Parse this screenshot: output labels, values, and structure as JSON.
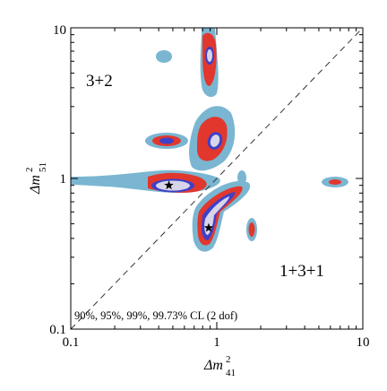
{
  "chart_data": {
    "type": "contour",
    "x_axis": {
      "label_main": "Δm",
      "label_sup": "2",
      "label_sub": "41",
      "scale": "log",
      "range": [
        0.1,
        10
      ],
      "tick_labels": [
        "0.1",
        "1",
        "10"
      ],
      "tick_values": [
        0.1,
        1,
        10
      ]
    },
    "y_axis": {
      "label_main": "Δm",
      "label_sup": "2",
      "label_sub": "51",
      "scale": "log",
      "range": [
        0.1,
        10
      ],
      "tick_labels": [
        "0.1",
        "1",
        "10"
      ],
      "tick_values": [
        0.1,
        1,
        10
      ]
    },
    "region_labels": [
      "3+2",
      "1+3+1"
    ],
    "cl_note": "90%, 95%, 99%, 99.73% CL (2 dof)",
    "confidence_levels": [
      "90%",
      "95%",
      "99%",
      "99.73%"
    ],
    "level_colors": {
      "99.73%": "#7ab6d1",
      "99%": "#e2372d",
      "95%": "#3d40c9",
      "90%": "#d8d4ea"
    },
    "diagonal": {
      "style": "dashed",
      "from": [
        0.1,
        0.1
      ],
      "to": [
        10,
        10
      ]
    },
    "best_fit_points": [
      {
        "x": 0.47,
        "y": 0.9
      },
      {
        "x": 0.88,
        "y": 0.47
      }
    ],
    "grid": false
  }
}
